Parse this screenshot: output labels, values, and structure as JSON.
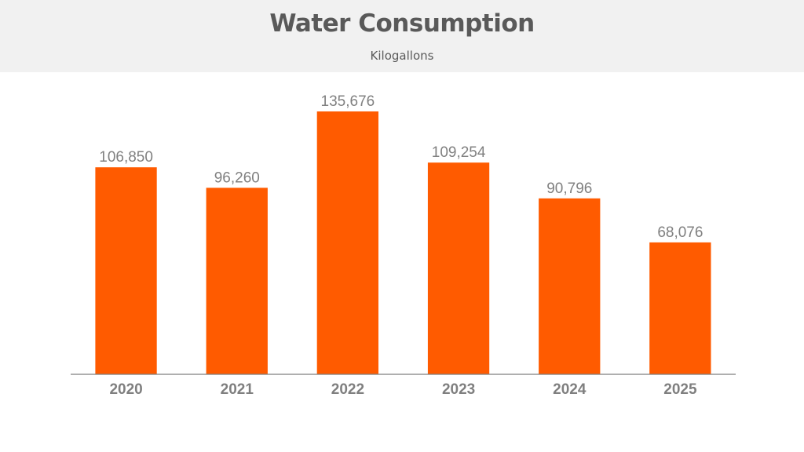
{
  "chart_data": {
    "type": "bar",
    "title": "Water Consumption",
    "subtitle": "Kilogallons",
    "xlabel": "",
    "ylabel": "",
    "categories": [
      "2020",
      "2021",
      "2022",
      "2023",
      "2024",
      "2025"
    ],
    "values": [
      106850,
      96260,
      135676,
      109254,
      90796,
      68076
    ],
    "data_labels": [
      "106,850",
      "96,260",
      "135,676",
      "109,254",
      "90,796",
      "68,076"
    ],
    "ylim": [
      0,
      135676
    ],
    "grid": false,
    "legend": "none",
    "bar_color": "#ff5b00"
  }
}
